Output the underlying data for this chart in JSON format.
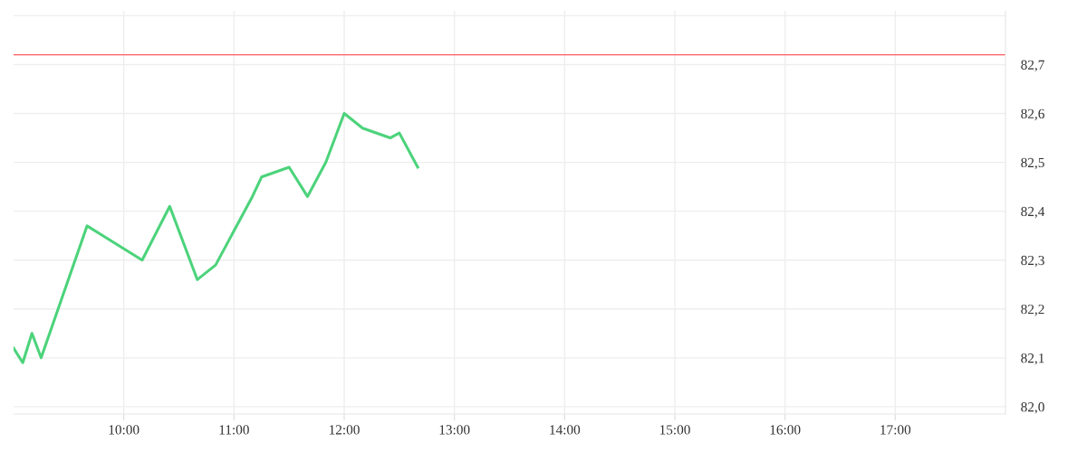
{
  "chart_data": {
    "type": "line",
    "x": [
      9.0,
      9.0833,
      9.1667,
      9.25,
      9.6667,
      10.1667,
      10.4167,
      10.6667,
      10.8333,
      11.1667,
      11.25,
      11.5,
      11.6667,
      11.8333,
      12.0,
      12.1667,
      12.4167,
      12.5,
      12.6667
    ],
    "series": [
      {
        "color": "#4cd37b",
        "values": [
          82.12,
          82.09,
          82.15,
          82.1,
          82.37,
          82.3,
          82.41,
          82.26,
          82.29,
          82.43,
          82.47,
          82.49,
          82.43,
          82.5,
          82.6,
          82.57,
          82.55,
          82.56,
          82.49
        ]
      }
    ],
    "xlim": [
      9,
      18
    ],
    "xticks": [
      {
        "value": 10,
        "label": "10:00"
      },
      {
        "value": 11,
        "label": "11:00"
      },
      {
        "value": 12,
        "label": "12:00"
      },
      {
        "value": 13,
        "label": "13:00"
      },
      {
        "value": 14,
        "label": "14:00"
      },
      {
        "value": 15,
        "label": "15:00"
      },
      {
        "value": 16,
        "label": "16:00"
      },
      {
        "value": 17,
        "label": "17:00"
      }
    ],
    "ylim": [
      81.985,
      82.81
    ],
    "yticks": [
      {
        "value": 82.0,
        "label": "82,0"
      },
      {
        "value": 82.1,
        "label": "82,1"
      },
      {
        "value": 82.2,
        "label": "82,2"
      },
      {
        "value": 82.3,
        "label": "82,3"
      },
      {
        "value": 82.4,
        "label": "82,4"
      },
      {
        "value": 82.5,
        "label": "82,5"
      },
      {
        "value": 82.6,
        "label": "82,6"
      },
      {
        "value": 82.7,
        "label": "82,7"
      },
      {
        "value": 82.8,
        "label": null
      }
    ],
    "ref_lines": [
      {
        "axis": "y",
        "value": 82.72,
        "color": "#ff5a5f"
      }
    ],
    "grid": true,
    "legend": false,
    "marker": "none",
    "line_style": "solid"
  }
}
